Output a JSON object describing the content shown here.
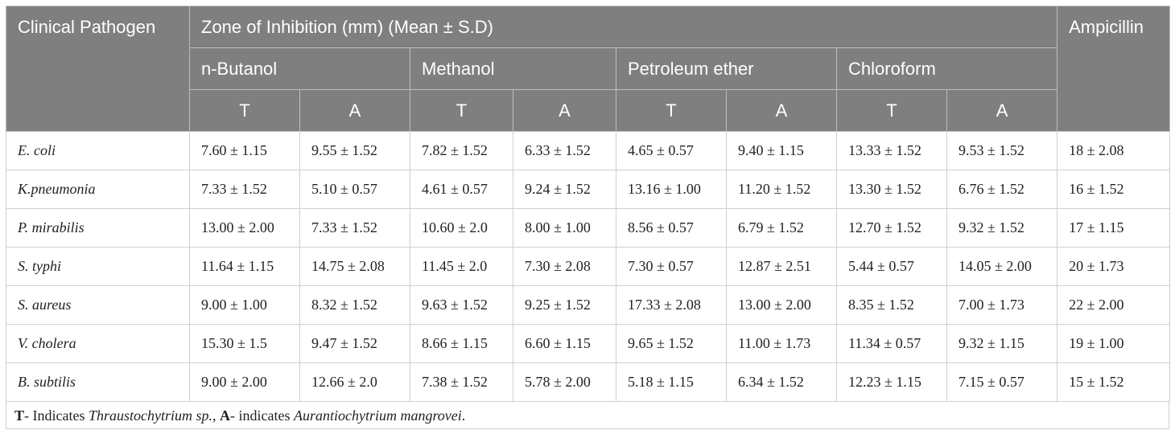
{
  "header": {
    "pathogen": "Clinical Pathogen",
    "zone": "Zone of Inhibition (mm) (Mean ± S.D)",
    "control": "Ampicillin",
    "solvents": [
      "n-Butanol",
      "Methanol",
      "Petroleum ether",
      "Chloroform"
    ],
    "sub": [
      "T",
      "A",
      "T",
      "A",
      "T",
      "A",
      "T",
      "A"
    ]
  },
  "rows": [
    {
      "pathogen": "E. coli",
      "values": [
        "7.60 ± 1.15",
        "9.55 ± 1.52",
        "7.82 ± 1.52",
        "6.33 ± 1.52",
        "4.65 ± 0.57",
        "9.40 ± 1.15",
        "13.33 ± 1.52",
        "9.53 ± 1.52",
        "18 ± 2.08"
      ]
    },
    {
      "pathogen": "K.pneumonia",
      "values": [
        "7.33 ± 1.52",
        "5.10 ± 0.57",
        "4.61 ± 0.57",
        "9.24 ± 1.52",
        "13.16 ± 1.00",
        "11.20 ± 1.52",
        "13.30 ± 1.52",
        "6.76 ± 1.52",
        "16 ± 1.52"
      ]
    },
    {
      "pathogen": "P. mirabilis",
      "values": [
        "13.00 ± 2.00",
        "7.33 ± 1.52",
        "10.60 ± 2.0",
        "8.00 ± 1.00",
        "8.56 ± 0.57",
        "6.79 ± 1.52",
        "12.70 ± 1.52",
        "9.32 ± 1.52",
        "17 ± 1.15"
      ]
    },
    {
      "pathogen": "S. typhi",
      "values": [
        "11.64 ± 1.15",
        "14.75 ± 2.08",
        "11.45 ± 2.0",
        "7.30 ± 2.08",
        "7.30 ± 0.57",
        "12.87 ± 2.51",
        "5.44 ± 0.57",
        "14.05 ± 2.00",
        "20 ± 1.73"
      ]
    },
    {
      "pathogen": "S. aureus",
      "values": [
        "9.00 ± 1.00",
        "8.32 ± 1.52",
        "9.63 ± 1.52",
        "9.25 ± 1.52",
        "17.33 ± 2.08",
        "13.00 ± 2.00",
        "8.35 ± 1.52",
        "7.00 ± 1.73",
        "22 ± 2.00"
      ]
    },
    {
      "pathogen": "V. cholera",
      "values": [
        "15.30 ± 1.5",
        "9.47 ± 1.52",
        "8.66 ± 1.15",
        "6.60 ± 1.15",
        "9.65 ± 1.52",
        "11.00 ± 1.73",
        "11.34 ± 0.57",
        "9.32 ± 1.15",
        "19 ± 1.00"
      ]
    },
    {
      "pathogen": "B. subtilis",
      "values": [
        "9.00 ± 2.00",
        "12.66 ± 2.0",
        "7.38 ± 1.52",
        "5.78 ± 2.00",
        "5.18 ± 1.15",
        "6.34 ± 1.52",
        "12.23 ± 1.15",
        "7.15 ± 0.57",
        "15 ± 1.52"
      ]
    }
  ],
  "footnote": {
    "t_key": "T",
    "t_text": "- Indicates ",
    "t_species": "Thraustochytrium sp.",
    "sep": ", ",
    "a_key": "A",
    "a_text": "- indicates ",
    "a_species": "Aurantiochytrium mangrovei",
    "end": "."
  },
  "colors": {
    "header_bg": "#7f7f7f",
    "header_text": "#ffffff",
    "body_text": "#222222"
  }
}
